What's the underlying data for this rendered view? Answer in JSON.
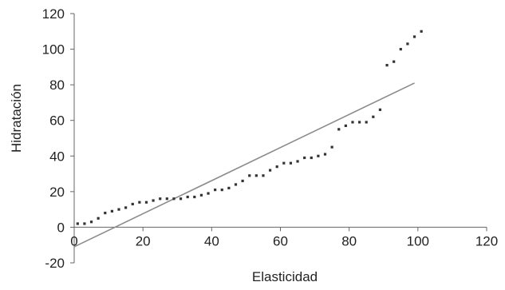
{
  "chart_data": {
    "type": "scatter",
    "xlabel": "Elasticidad",
    "ylabel": "Hidratación",
    "xlim": [
      0,
      120
    ],
    "ylim": [
      -20,
      120
    ],
    "x_ticks": [
      "0",
      "20",
      "40",
      "60",
      "80",
      "100",
      "120"
    ],
    "y_ticks": [
      "-20",
      "0",
      "20",
      "40",
      "60",
      "80",
      "100",
      "120"
    ],
    "grid": false,
    "legend": "none",
    "colors": {
      "points": "#333333",
      "trendline": "#8c8c8c",
      "axis": "#666666"
    },
    "series": [
      {
        "points": [
          [
            1,
            2
          ],
          [
            3,
            2
          ],
          [
            5,
            3
          ],
          [
            7,
            5
          ],
          [
            9,
            8
          ],
          [
            11,
            9
          ],
          [
            13,
            10
          ],
          [
            15,
            11
          ],
          [
            17,
            13
          ],
          [
            19,
            14
          ],
          [
            21,
            14
          ],
          [
            23,
            15
          ],
          [
            25,
            16
          ],
          [
            27,
            16
          ],
          [
            29,
            16
          ],
          [
            31,
            16
          ],
          [
            33,
            17
          ],
          [
            35,
            17
          ],
          [
            37,
            18
          ],
          [
            39,
            19
          ],
          [
            41,
            21
          ],
          [
            43,
            21
          ],
          [
            45,
            22
          ],
          [
            47,
            24
          ],
          [
            49,
            26
          ],
          [
            51,
            29
          ],
          [
            53,
            29
          ],
          [
            55,
            29
          ],
          [
            57,
            32
          ],
          [
            59,
            34
          ],
          [
            61,
            36
          ],
          [
            63,
            36
          ],
          [
            65,
            37
          ],
          [
            67,
            39
          ],
          [
            69,
            39
          ],
          [
            71,
            40
          ],
          [
            73,
            41
          ],
          [
            75,
            45
          ],
          [
            77,
            55
          ],
          [
            79,
            57
          ],
          [
            81,
            59
          ],
          [
            83,
            59
          ],
          [
            85,
            59
          ],
          [
            87,
            62
          ],
          [
            89,
            66
          ],
          [
            91,
            91
          ],
          [
            93,
            93
          ],
          [
            95,
            100
          ],
          [
            97,
            103
          ],
          [
            99,
            107
          ],
          [
            101,
            110
          ]
        ]
      }
    ],
    "trendline": {
      "x": [
        0,
        99
      ],
      "y": [
        -11,
        81
      ]
    }
  }
}
